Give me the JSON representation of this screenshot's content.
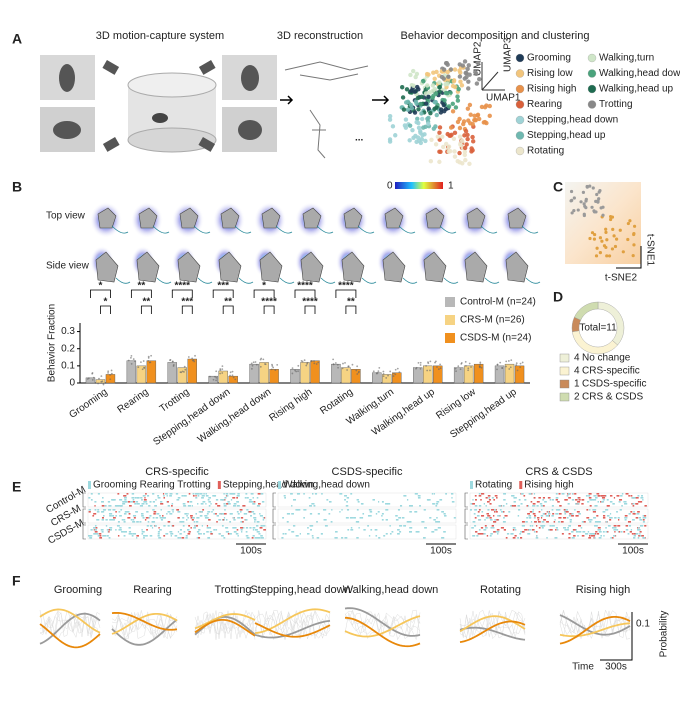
{
  "panel_labels": [
    "A",
    "B",
    "C",
    "D",
    "E",
    "F"
  ],
  "panel_a": {
    "titles": [
      "3D motion-capture system",
      "3D reconstruction",
      "Behavior decomposition and clustering"
    ],
    "ellipsis": "...",
    "umap_axes": [
      "UMAP1",
      "UMAP2",
      "UMAP3"
    ],
    "legend": [
      {
        "name": "Grooming",
        "color": "#1f3b57"
      },
      {
        "name": "Rising low",
        "color": "#f2c57c"
      },
      {
        "name": "Rising high",
        "color": "#e8914a"
      },
      {
        "name": "Rearing",
        "color": "#d9603b"
      },
      {
        "name": "Stepping,head down",
        "color": "#9fd3d6"
      },
      {
        "name": "Stepping,head up",
        "color": "#6fb8b0"
      },
      {
        "name": "Rotating",
        "color": "#ece6cc"
      },
      {
        "name": "Walking,turn",
        "color": "#cfe6c8"
      },
      {
        "name": "Walking,head down",
        "color": "#4aa37c"
      },
      {
        "name": "Walking,head up",
        "color": "#1e6b50"
      },
      {
        "name": "Trotting",
        "color": "#888888"
      }
    ]
  },
  "panel_b": {
    "row_labels": [
      "Top view",
      "Side view"
    ],
    "colorbar": [
      0,
      1
    ],
    "significance": [
      [
        "*",
        "*"
      ],
      [
        "**",
        "**"
      ],
      [
        "****",
        "***"
      ],
      [
        "***",
        "**"
      ],
      [
        "*",
        "****"
      ],
      [
        "****",
        "****"
      ],
      [
        "****",
        "**"
      ]
    ]
  },
  "panel_c": {
    "axes": [
      "t-SNE1",
      "t-SNE2"
    ]
  },
  "panel_e": {
    "row_labels": [
      "Control-M",
      "CRS-M",
      "CSDS-M"
    ],
    "columns": [
      {
        "title": "CRS-specific",
        "legend": [
          {
            "text": "Grooming Rearing Trotting",
            "color": "#9dd9df"
          },
          {
            "text": "Stepping,head down",
            "color": "#e0605a"
          }
        ],
        "scale": "100s"
      },
      {
        "title": "CSDS-specific",
        "legend": [
          {
            "text": "Walking,head down",
            "color": "#9dd9df"
          }
        ],
        "scale": "100s"
      },
      {
        "title": "CRS & CSDS",
        "legend": [
          {
            "text": "Rotating",
            "color": "#9dd9df"
          },
          {
            "text": "Rising high",
            "color": "#e0605a"
          }
        ],
        "scale": "100s"
      }
    ]
  },
  "panel_f": {
    "titles": [
      "Grooming",
      "Rearing",
      "Trotting",
      "Stepping,head down",
      "Walking,head down",
      "Rotating",
      "Rising high"
    ],
    "x_label": "Time",
    "x_scale": "300s",
    "y_label": "Probability",
    "y_scale": 0.1
  },
  "chart_data": [
    {
      "type": "bar",
      "y_label": "Behavior Fraction",
      "categories": [
        "Grooming",
        "Rearing",
        "Trotting",
        "Stepping,head down",
        "Walking,head down",
        "Rising high",
        "Rotating",
        "Walking,turn",
        "Walking,head up",
        "Rising low",
        "Stepping,head up"
      ],
      "series": [
        {
          "name": "Control-M (n=24)",
          "color": "#b8b8b8",
          "values": [
            0.03,
            0.13,
            0.12,
            0.04,
            0.11,
            0.08,
            0.11,
            0.06,
            0.09,
            0.09,
            0.1
          ]
        },
        {
          "name": "CRS-M (n=26)",
          "color": "#f6d383",
          "values": [
            0.02,
            0.1,
            0.09,
            0.07,
            0.12,
            0.12,
            0.09,
            0.05,
            0.1,
            0.1,
            0.11
          ]
        },
        {
          "name": "CSDS-M (n=24)",
          "color": "#f0901e",
          "values": [
            0.05,
            0.13,
            0.14,
            0.04,
            0.08,
            0.13,
            0.08,
            0.06,
            0.1,
            0.11,
            0.1
          ]
        }
      ],
      "ylim": [
        0,
        0.35
      ],
      "yticks": [
        0,
        0.1,
        0.2,
        0.3
      ]
    },
    {
      "type": "pie",
      "title": "Total=11",
      "categories": [
        "No change",
        "CRS-specific",
        "CSDS-specific",
        "CRS & CSDS"
      ],
      "values": [
        4,
        4,
        1,
        2
      ],
      "colors": [
        "#eef0d8",
        "#fbf3d2",
        "#c98a5a",
        "#cfdcb0"
      ]
    }
  ]
}
